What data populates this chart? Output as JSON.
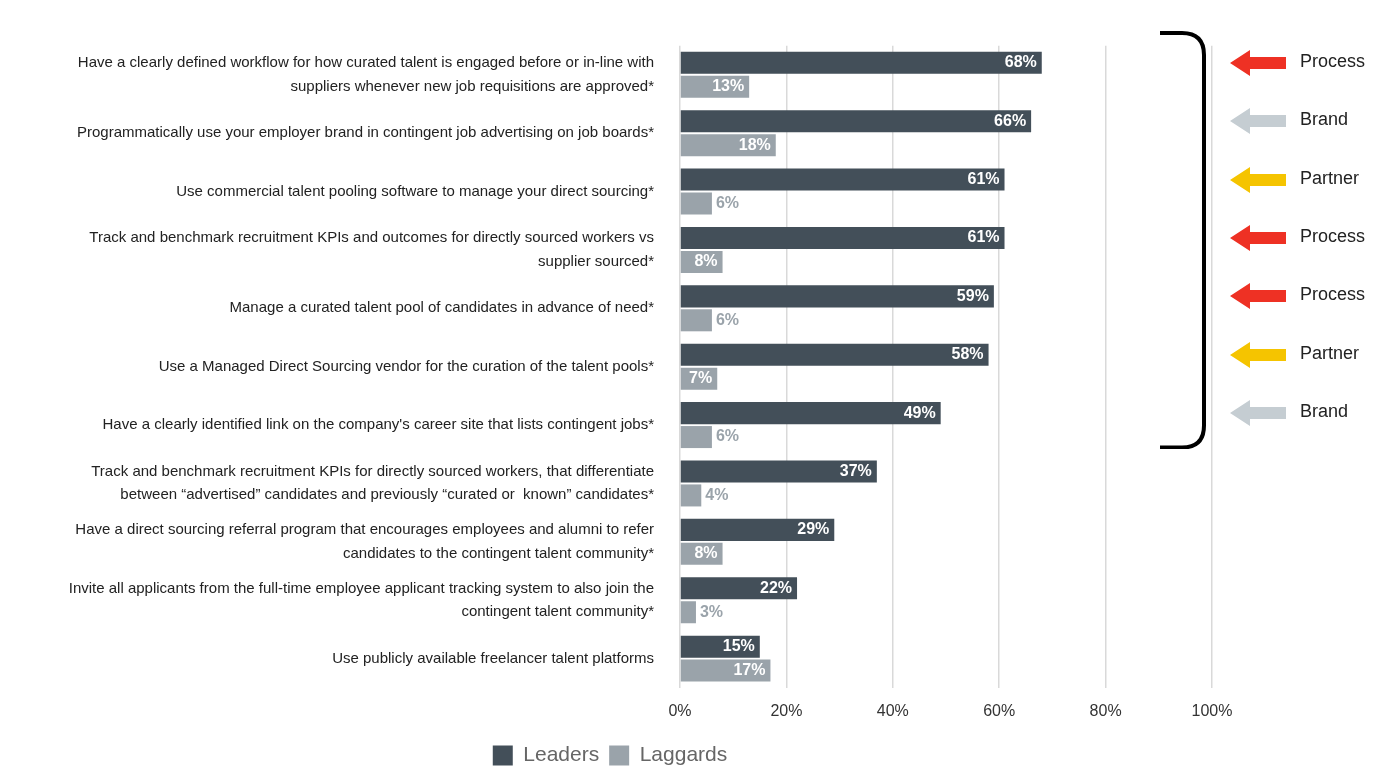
{
  "chart_data": {
    "type": "bar",
    "orientation": "horizontal",
    "categories": [
      "Have a clearly defined workflow for how curated talent is engaged before or in-line with suppliers whenever new job requisitions are approved*",
      "Programmatically use your employer brand in contingent job advertising on job boards*",
      "Use commercial talent pooling software to manage your direct sourcing*",
      "Track and benchmark recruitment KPIs and outcomes for directly sourced workers vs supplier sourced*",
      "Manage a curated talent pool of candidates in advance of need*",
      "Use a Managed Direct Sourcing vendor for the curation of the talent pools*",
      "Have a clearly identified link on the company's career site that lists contingent jobs*",
      "Track and benchmark recruitment KPIs for directly sourced workers, that differentiate between “advertised” candidates and previously “curated or  known” candidates*",
      "Have a direct sourcing referral program that encourages employees and alumni to refer candidates to the contingent talent community*",
      "Invite all applicants from the full-time employee applicant tracking system to also join the contingent talent community*",
      "Use publicly available freelancer talent platforms"
    ],
    "series": [
      {
        "name": "Leaders",
        "color": "#434f59",
        "values": [
          68,
          66,
          61,
          61,
          59,
          58,
          49,
          37,
          29,
          22,
          15
        ],
        "value_labels": [
          "68%",
          "66%",
          "61%",
          "61%",
          "59%",
          "58%",
          "49%",
          "37%",
          "29%",
          "22%",
          "15%"
        ]
      },
      {
        "name": "Laggards",
        "color": "#9aa3aa",
        "values": [
          13,
          18,
          6,
          8,
          6,
          7,
          6,
          4,
          8,
          3,
          17
        ],
        "value_labels": [
          "13%",
          "18%",
          "6%",
          "8%",
          "6%",
          "7%",
          "6%",
          "4%",
          "8%",
          "3%",
          "17%"
        ]
      }
    ],
    "xlim": [
      0,
      100
    ],
    "xticks": [
      {
        "value": 0,
        "label": "0%"
      },
      {
        "value": 20,
        "label": "20%"
      },
      {
        "value": 40,
        "label": "40%"
      },
      {
        "value": 60,
        "label": "60%"
      },
      {
        "value": 80,
        "label": "80%"
      },
      {
        "value": 100,
        "label": "100%"
      }
    ],
    "grid": "x",
    "legend": "bottom",
    "annotations": [
      "Process",
      "Brand",
      "Partner",
      "Process",
      "Process",
      "Partner",
      "Brand"
    ]
  }
}
